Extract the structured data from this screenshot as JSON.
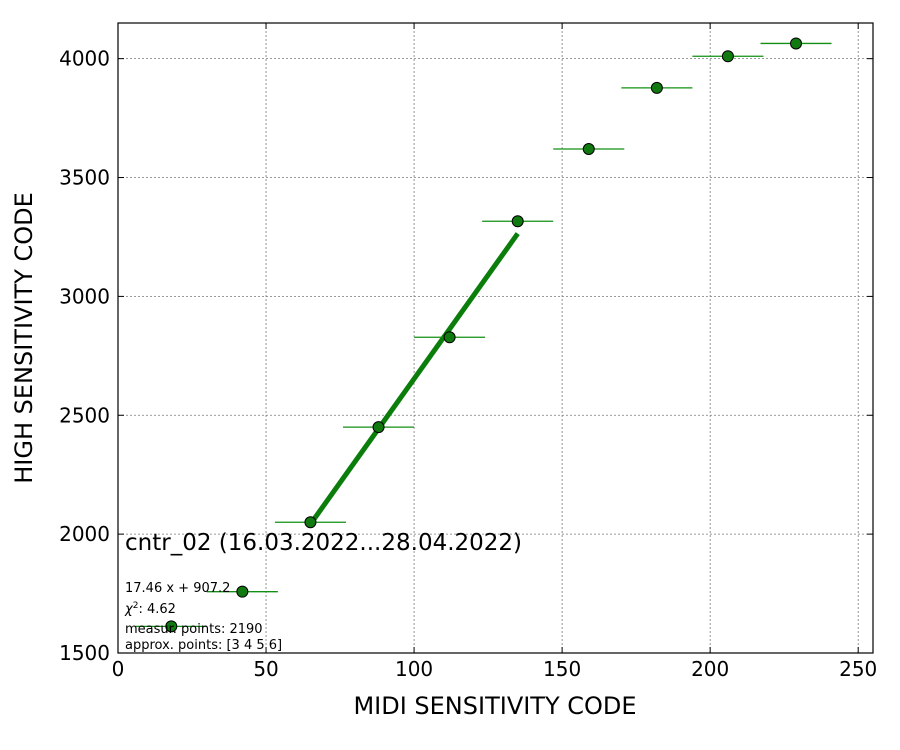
{
  "chart_data": {
    "type": "scatter",
    "xlabel": "MIDI SENSITIVITY CODE",
    "ylabel": "HIGH SENSITIVITY CODE",
    "xlim": [
      0,
      255
    ],
    "ylim": [
      1500,
      4150
    ],
    "xticks": [
      0,
      50,
      100,
      150,
      200,
      250
    ],
    "yticks": [
      1500,
      2000,
      2500,
      3000,
      3500,
      4000
    ],
    "grid": true,
    "title": "cntr_02 (16.03.2022...28.04.2022)",
    "annotations": {
      "fit": "17.46 x + 907.2",
      "chi2_label": "χ",
      "chi2_value": ": 4.62",
      "measure": "measur. points: 2190",
      "approx": "approx. points: [3 4 5 6]"
    },
    "points": [
      {
        "x": 18,
        "y": 1612,
        "xerr": 12
      },
      {
        "x": 42,
        "y": 1758,
        "xerr": 12
      },
      {
        "x": 65,
        "y": 2050,
        "xerr": 12
      },
      {
        "x": 88,
        "y": 2450,
        "xerr": 12
      },
      {
        "x": 112,
        "y": 2828,
        "xerr": 12
      },
      {
        "x": 135,
        "y": 3316,
        "xerr": 12
      },
      {
        "x": 159,
        "y": 3620,
        "xerr": 12
      },
      {
        "x": 182,
        "y": 3877,
        "xerr": 12
      },
      {
        "x": 206,
        "y": 4010,
        "xerr": 12
      },
      {
        "x": 229,
        "y": 4064,
        "xerr": 12
      }
    ],
    "fit_line": {
      "slope": 17.46,
      "intercept": 907.2,
      "x_range": [
        65,
        135
      ]
    },
    "colors": {
      "points": "#107a10",
      "fit": "#0a7d0a",
      "errorbar": "#138f13",
      "grid": "#7a7a7a"
    }
  }
}
